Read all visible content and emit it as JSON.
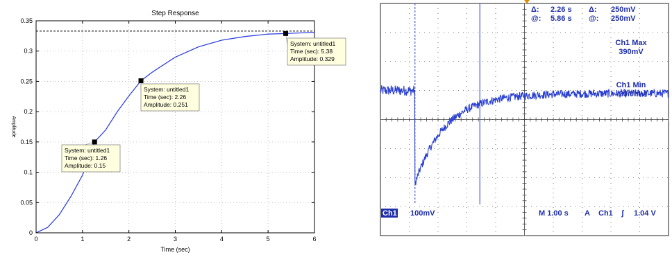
{
  "chart_data": [
    {
      "type": "line",
      "title": "Step Response",
      "xlabel": "Time (sec)",
      "ylabel": "Amplitude",
      "xlim": [
        0,
        6
      ],
      "ylim": [
        0,
        0.35
      ],
      "x_ticks": [
        "0",
        "1",
        "2",
        "3",
        "4",
        "5",
        "6"
      ],
      "y_ticks": [
        "0",
        "0.05",
        "0.1",
        "0.15",
        "0.2",
        "0.25",
        "0.3",
        "0.35"
      ],
      "steady_state": 0.333,
      "series": [
        {
          "x": [
            0,
            0.25,
            0.5,
            0.75,
            1.0,
            1.26,
            1.5,
            1.75,
            2.0,
            2.26,
            2.5,
            3.0,
            3.5,
            4.0,
            4.5,
            5.0,
            5.38,
            6.0
          ],
          "y": [
            0,
            0.009,
            0.03,
            0.06,
            0.095,
            0.15,
            0.17,
            0.2,
            0.226,
            0.251,
            0.265,
            0.29,
            0.307,
            0.318,
            0.324,
            0.328,
            0.329,
            0.331
          ],
          "color": "#3344dd"
        }
      ],
      "datatips": [
        {
          "x": 1.26,
          "y": 0.15,
          "system": "System: untitled1",
          "time": "Time (sec): 1.26",
          "amplitude": "Amplitude: 0.15"
        },
        {
          "x": 2.26,
          "y": 0.251,
          "system": "System: untitled1",
          "time": "Time (sec): 2.26",
          "amplitude": "Amplitude: 0.251"
        },
        {
          "x": 5.38,
          "y": 0.329,
          "system": "System: untitled1",
          "time": "Time (sec): 5.38",
          "amplitude": "Amplitude: 0.329"
        }
      ]
    },
    {
      "type": "line",
      "title": "",
      "trace_color": "#2a3fd0",
      "background_color": "#ffffff",
      "x_range_divs": [
        0,
        10
      ],
      "y_range_divs": [
        -4,
        4
      ],
      "waveform": {
        "pre_step_level_divs": 1.0,
        "drop_time_divs": 1.2,
        "drop_level_divs": -2.2,
        "settle_level_divs": 0.9
      },
      "cursors": {
        "vertical": [
          1.2,
          3.45
        ],
        "delta_label": "Δ:",
        "delta_time": "2.26 s",
        "at_label": "@:",
        "at_time": "5.86 s",
        "delta_volt": "250mV",
        "at_volt": "250mV"
      },
      "measurements": [
        {
          "name": "Ch1 Max",
          "value": "390mV"
        },
        {
          "name": "Ch1 Min",
          "value": "-20.0mV"
        }
      ],
      "status": {
        "channel": "Ch1",
        "vscale": "100mV",
        "timebase": "M 1.00 s",
        "trigger_mode": "A",
        "trigger_channel": "Ch1",
        "trigger_slope": "ʃ",
        "trigger_level": "1.04 V"
      }
    }
  ]
}
